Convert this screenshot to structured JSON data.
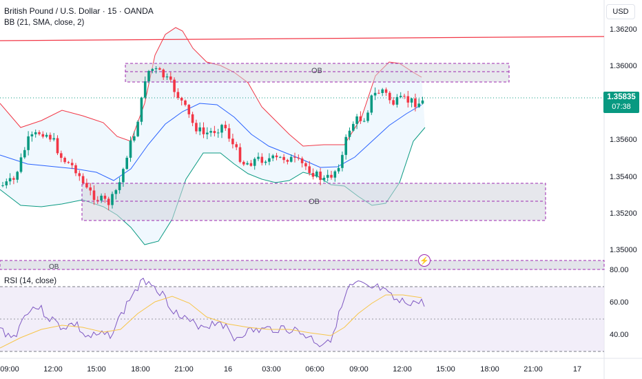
{
  "header": {
    "symbol_line": "British Pound / U.S. Dollar · 15 · OANDA",
    "indicator_line": "BB (21, SMA, close, 2)",
    "currency_button": "USD"
  },
  "price_axis": {
    "ticks": [
      "1.36200",
      "1.36000",
      "1.35600",
      "1.35400",
      "1.35200",
      "1.35000"
    ],
    "current_price": "1.35835",
    "countdown": "07:38"
  },
  "rsi": {
    "title": "RSI (14, close)",
    "ticks": [
      "80.00",
      "60.00",
      "40.00"
    ]
  },
  "time_axis": {
    "ticks": [
      "09:00",
      "12:00",
      "15:00",
      "18:00",
      "21:00",
      "16",
      "03:00",
      "06:00",
      "09:00",
      "12:00",
      "15:00",
      "18:00",
      "21:00",
      "17"
    ]
  },
  "zones": {
    "upper_label": "OB",
    "middle_label": "OB",
    "lower_label": "OB"
  },
  "colors": {
    "bull": "#089981",
    "bear": "#f23645",
    "bb_upper": "#f23645",
    "bb_basis": "#2962ff",
    "bb_lower": "#089981",
    "bb_fill": "#e3f2fd",
    "ob_border": "#9c27b0",
    "rsi_line": "#7e57c2",
    "rsi_ma": "#f7c548",
    "rsi_band": "#ede7f6",
    "resistance": "#f23645"
  },
  "icons": {
    "alert": "lightning-icon"
  }
}
